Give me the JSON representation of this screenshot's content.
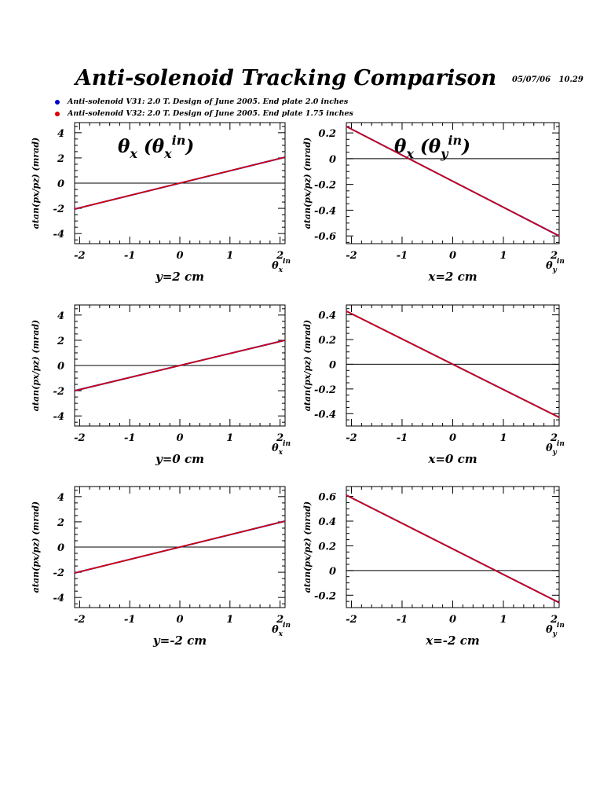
{
  "page": {
    "title": "Anti-solenoid Tracking Comparison",
    "timestamp": "05/07/06   10.29"
  },
  "legend": [
    {
      "label": "Anti-solenoid V31: 2.0 T. Design of June 2005. End plate 2.0 inches",
      "color": "#0000cc"
    },
    {
      "label": "Anti-solenoid V32: 2.0 T. Design of June 2005. End plate 1.75 inches",
      "color": "#dd0000"
    }
  ],
  "colors": {
    "v31": "#0000cc",
    "v32": "#dd0000",
    "axis": "#000000"
  },
  "chart_data": [
    {
      "type": "line",
      "panel_title": {
        "base": "θ",
        "sub": "x",
        "inner": "θ",
        "inner_sub": "x",
        "inner_sup": "in"
      },
      "caption": "y=2 cm",
      "ylabel": "atan(px/pz) (mrad)",
      "xlabel": {
        "base": "θ",
        "sub": "x",
        "sup": "in"
      },
      "xlim": [
        -2.1,
        2.1
      ],
      "ylim": [
        -4.8,
        4.8
      ],
      "xticks": [
        -2,
        -1,
        0,
        1,
        2
      ],
      "xticklabels": [
        "-2",
        "-1",
        "0",
        "1",
        "2"
      ],
      "yticks": [
        -4,
        -2,
        0,
        2,
        4
      ],
      "yticklabels": [
        "-4",
        "-2",
        "0",
        "2",
        "4"
      ],
      "series": [
        {
          "x": [
            -2.1,
            2.1
          ],
          "y": [
            -2.06,
            2.06
          ]
        },
        {
          "x": [
            -2.1,
            2.1
          ],
          "y": [
            -2.06,
            2.06
          ]
        }
      ]
    },
    {
      "type": "line",
      "panel_title": {
        "base": "θ",
        "sub": "x",
        "inner": "θ",
        "inner_sub": "y",
        "inner_sup": "in"
      },
      "caption": "x=2 cm",
      "ylabel": "atan(px/pz) (mrad)",
      "xlabel": {
        "base": "θ",
        "sub": "y",
        "sup": "in"
      },
      "xlim": [
        -2.1,
        2.1
      ],
      "ylim": [
        -0.66,
        0.28
      ],
      "xticks": [
        -2,
        -1,
        0,
        1,
        2
      ],
      "xticklabels": [
        "-2",
        "-1",
        "0",
        "1",
        "2"
      ],
      "yticks": [
        -0.6,
        -0.4,
        -0.2,
        0,
        0.2
      ],
      "yticklabels": [
        "-0.6",
        "-0.4",
        "-0.2",
        "0",
        "0.2"
      ],
      "series": [
        {
          "x": [
            -2.1,
            2.1
          ],
          "y": [
            0.25,
            -0.6
          ]
        },
        {
          "x": [
            -2.1,
            2.1
          ],
          "y": [
            0.25,
            -0.6
          ]
        }
      ]
    },
    {
      "type": "line",
      "caption": "y=0 cm",
      "ylabel": "atan(px/pz) (mrad)",
      "xlabel": {
        "base": "θ",
        "sub": "x",
        "sup": "in"
      },
      "xlim": [
        -2.1,
        2.1
      ],
      "ylim": [
        -4.8,
        4.8
      ],
      "xticks": [
        -2,
        -1,
        0,
        1,
        2
      ],
      "xticklabels": [
        "-2",
        "-1",
        "0",
        "1",
        "2"
      ],
      "yticks": [
        -4,
        -2,
        0,
        2,
        4
      ],
      "yticklabels": [
        "-4",
        "-2",
        "0",
        "2",
        "4"
      ],
      "series": [
        {
          "x": [
            -2.1,
            2.1
          ],
          "y": [
            -2.0,
            2.0
          ]
        },
        {
          "x": [
            -2.1,
            2.1
          ],
          "y": [
            -2.0,
            2.0
          ]
        }
      ]
    },
    {
      "type": "line",
      "caption": "x=0 cm",
      "ylabel": "atan(px/pz) (mrad)",
      "xlabel": {
        "base": "θ",
        "sub": "y",
        "sup": "in"
      },
      "xlim": [
        -2.1,
        2.1
      ],
      "ylim": [
        -0.5,
        0.48
      ],
      "xticks": [
        -2,
        -1,
        0,
        1,
        2
      ],
      "xticklabels": [
        "-2",
        "-1",
        "0",
        "1",
        "2"
      ],
      "yticks": [
        -0.4,
        -0.2,
        0,
        0.2,
        0.4
      ],
      "yticklabels": [
        "-0.4",
        "-0.2",
        "0",
        "0.2",
        "0.4"
      ],
      "series": [
        {
          "x": [
            -2.1,
            2.1
          ],
          "y": [
            0.43,
            -0.43
          ]
        },
        {
          "x": [
            -2.1,
            2.1
          ],
          "y": [
            0.43,
            -0.43
          ]
        }
      ]
    },
    {
      "type": "line",
      "caption": "y=-2 cm",
      "ylabel": "atan(px/pz) (mrad)",
      "xlabel": {
        "base": "θ",
        "sub": "x",
        "sup": "in"
      },
      "xlim": [
        -2.1,
        2.1
      ],
      "ylim": [
        -4.8,
        4.8
      ],
      "xticks": [
        -2,
        -1,
        0,
        1,
        2
      ],
      "xticklabels": [
        "-2",
        "-1",
        "0",
        "1",
        "2"
      ],
      "yticks": [
        -4,
        -2,
        0,
        2,
        4
      ],
      "yticklabels": [
        "-4",
        "-2",
        "0",
        "2",
        "4"
      ],
      "series": [
        {
          "x": [
            -2.1,
            2.1
          ],
          "y": [
            -2.06,
            2.06
          ]
        },
        {
          "x": [
            -2.1,
            2.1
          ],
          "y": [
            -2.06,
            2.06
          ]
        }
      ]
    },
    {
      "type": "line",
      "caption": "x=-2 cm",
      "ylabel": "atan(px/pz) (mrad)",
      "xlabel": {
        "base": "θ",
        "sub": "y",
        "sup": "in"
      },
      "xlim": [
        -2.1,
        2.1
      ],
      "ylim": [
        -0.3,
        0.68
      ],
      "xticks": [
        -2,
        -1,
        0,
        1,
        2
      ],
      "xticklabels": [
        "-2",
        "-1",
        "0",
        "1",
        "2"
      ],
      "yticks": [
        -0.2,
        0,
        0.2,
        0.4,
        0.6
      ],
      "yticklabels": [
        "-0.2",
        "0",
        "0.2",
        "0.4",
        "0.6"
      ],
      "series": [
        {
          "x": [
            -2.1,
            2.1
          ],
          "y": [
            0.61,
            -0.26
          ]
        },
        {
          "x": [
            -2.1,
            2.1
          ],
          "y": [
            0.61,
            -0.26
          ]
        }
      ]
    }
  ]
}
